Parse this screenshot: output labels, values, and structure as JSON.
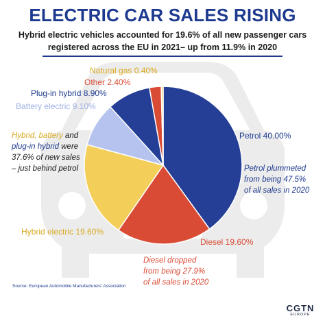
{
  "title": "ELECTRIC CAR SALES RISING",
  "subtitle_line1": "Hybrid electric vehicles accounted for 19.6% of all new passenger cars",
  "subtitle_line2": "registered across the EU in 2021– up from 11.9% in 2020",
  "chart_data": {
    "type": "pie",
    "slices": [
      {
        "label": "Petrol",
        "value": 40.0,
        "display": "Petrol 40.00%",
        "color": "#243f95"
      },
      {
        "label": "Diesel",
        "value": 19.6,
        "display": "Diesel 19.60%",
        "color": "#d94b35"
      },
      {
        "label": "Hybrid electric",
        "value": 19.6,
        "display": "Hybrid electric 19.60%",
        "color": "#f3cf5a"
      },
      {
        "label": "Battery electric",
        "value": 9.1,
        "display": "Battery electric 9.10%",
        "color": "#b6c3ef"
      },
      {
        "label": "Plug-in hybrid",
        "value": 8.9,
        "display": "Plug-in hybrid 8.90%",
        "color": "#243f95"
      },
      {
        "label": "Other",
        "value": 2.4,
        "display": "Other 2.40%",
        "color": "#d94b35"
      },
      {
        "label": "Natural gas",
        "value": 0.4,
        "display": "Natural gas 0.40%",
        "color": "#f3cf5a"
      }
    ]
  },
  "notes": {
    "hybrid_note": {
      "part1": "Hybrid, battery",
      "part2": " and",
      "part3": "plug-in hybrid",
      "part4": " were",
      "line3": "37.6% of new sales",
      "line4": "– just behind petrol"
    },
    "petrol_note": [
      "Petrol plummeted",
      "from being 47.5%",
      "of all sales in 2020"
    ],
    "diesel_note": [
      "Diesel dropped",
      "from being 27.9%",
      "of all sales in 2020"
    ]
  },
  "source": "Source: European Automobile Manufacturers' Association",
  "logo": {
    "main": "CGTN",
    "sub": "EUROPE"
  },
  "colors": {
    "navy": "#1d3a8f",
    "red": "#d94b35",
    "yellow": "#f3cf5a",
    "lightblue": "#b6c3ef",
    "car_bg": "#ececec"
  }
}
